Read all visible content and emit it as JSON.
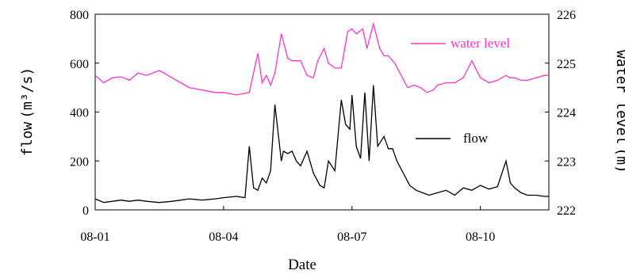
{
  "chart_data": {
    "type": "line",
    "xlabel": "Date",
    "x_ticks": [
      "08-01",
      "08-04",
      "08-07",
      "08-10"
    ],
    "xlim_days": [
      0,
      10.6
    ],
    "y_left": {
      "label": "flow",
      "unit": "m³/s",
      "ylim": [
        0,
        800
      ],
      "ticks": [
        "0",
        "200",
        "400",
        "600",
        "800"
      ]
    },
    "y_right": {
      "label": "water level",
      "unit": "m",
      "ylim": [
        222,
        226
      ],
      "ticks": [
        "222",
        "223",
        "224",
        "225",
        "226"
      ]
    },
    "legend": [
      {
        "series": "water level",
        "label": "water level",
        "color": "#ff33cc"
      },
      {
        "series": "flow",
        "label": "flow",
        "color": "#000000"
      }
    ],
    "series": [
      {
        "name": "water level",
        "axis": "right",
        "color": "#ff33cc",
        "x": [
          0,
          0.2,
          0.4,
          0.6,
          0.8,
          1.0,
          1.2,
          1.5,
          1.8,
          2.0,
          2.2,
          2.5,
          2.8,
          3.0,
          3.3,
          3.6,
          3.8,
          3.9,
          4.0,
          4.1,
          4.2,
          4.35,
          4.5,
          4.6,
          4.8,
          4.95,
          5.1,
          5.2,
          5.35,
          5.45,
          5.6,
          5.75,
          5.9,
          6.0,
          6.1,
          6.25,
          6.35,
          6.5,
          6.65,
          6.75,
          6.85,
          7.0,
          7.15,
          7.3,
          7.45,
          7.6,
          7.75,
          7.9,
          8.0,
          8.2,
          8.4,
          8.6,
          8.8,
          9.0,
          9.2,
          9.4,
          9.6,
          9.7,
          9.8,
          9.95,
          10.1,
          10.3,
          10.5,
          10.6
        ],
        "y": [
          224.75,
          224.6,
          224.7,
          224.72,
          224.65,
          224.8,
          224.75,
          224.85,
          224.7,
          224.6,
          224.5,
          224.45,
          224.4,
          224.4,
          224.35,
          224.4,
          225.2,
          224.6,
          224.75,
          224.55,
          224.8,
          225.6,
          225.1,
          225.05,
          225.05,
          224.75,
          224.7,
          225.05,
          225.3,
          225.0,
          224.9,
          224.9,
          225.65,
          225.7,
          225.6,
          225.7,
          225.3,
          225.8,
          225.3,
          225.15,
          225.15,
          225.0,
          224.75,
          224.5,
          224.55,
          224.5,
          224.4,
          224.45,
          224.55,
          224.6,
          224.6,
          224.7,
          225.05,
          224.7,
          224.6,
          224.65,
          224.75,
          224.7,
          224.7,
          224.65,
          224.65,
          224.7,
          224.75,
          224.75
        ]
      },
      {
        "name": "flow",
        "axis": "left",
        "color": "#000000",
        "x": [
          0,
          0.2,
          0.4,
          0.6,
          0.8,
          1.0,
          1.2,
          1.5,
          1.8,
          2.0,
          2.2,
          2.5,
          2.8,
          3.0,
          3.3,
          3.5,
          3.6,
          3.7,
          3.8,
          3.9,
          4.0,
          4.1,
          4.2,
          4.35,
          4.4,
          4.5,
          4.6,
          4.7,
          4.8,
          4.95,
          5.1,
          5.25,
          5.35,
          5.45,
          5.6,
          5.75,
          5.85,
          5.95,
          6.0,
          6.1,
          6.2,
          6.3,
          6.4,
          6.5,
          6.6,
          6.75,
          6.85,
          6.95,
          7.05,
          7.2,
          7.35,
          7.5,
          7.65,
          7.8,
          8.0,
          8.2,
          8.4,
          8.6,
          8.8,
          9.0,
          9.2,
          9.4,
          9.6,
          9.7,
          9.8,
          9.95,
          10.1,
          10.3,
          10.5,
          10.6
        ],
        "y": [
          45,
          30,
          35,
          40,
          35,
          40,
          35,
          30,
          35,
          40,
          45,
          40,
          45,
          50,
          55,
          50,
          260,
          90,
          80,
          130,
          110,
          160,
          430,
          200,
          240,
          230,
          240,
          200,
          180,
          240,
          150,
          100,
          90,
          200,
          160,
          450,
          350,
          330,
          470,
          260,
          210,
          480,
          200,
          510,
          260,
          300,
          250,
          250,
          200,
          150,
          100,
          80,
          70,
          60,
          70,
          80,
          60,
          90,
          80,
          100,
          85,
          95,
          200,
          110,
          90,
          70,
          60,
          60,
          55,
          55
        ]
      }
    ]
  }
}
